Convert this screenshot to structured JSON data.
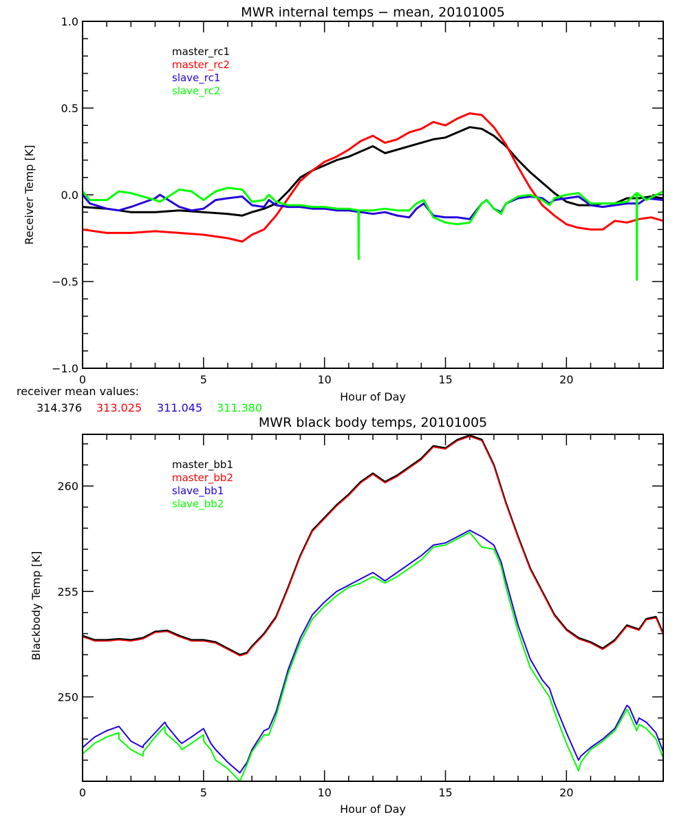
{
  "chart_data": [
    {
      "type": "line",
      "title": "MWR internal temps − mean, 20101005",
      "xlabel": "Hour of Day",
      "ylabel": "Receiver Temp [K]",
      "xlim": [
        0,
        24
      ],
      "ylim": [
        -1.0,
        1.0
      ],
      "xticks": [
        "0",
        "5",
        "10",
        "15",
        "20"
      ],
      "xtick_values": [
        0,
        5,
        10,
        15,
        20
      ],
      "yticks": [
        "−1.0",
        "−0.5",
        "0.0",
        "0.5",
        "1.0"
      ],
      "ytick_values": [
        -1.0,
        -0.5,
        0.0,
        0.5,
        1.0
      ],
      "x_minor_step": 1,
      "y_minor_step": 0.1,
      "grid": false,
      "legend_placement": "top-left",
      "series": [
        {
          "name": "master_rc1",
          "color": "#000000",
          "x": [
            0,
            1,
            2,
            3,
            4,
            5,
            6,
            6.6,
            7,
            7.5,
            8,
            8.5,
            9,
            9.5,
            10,
            10.5,
            11,
            11.5,
            12,
            12.5,
            13,
            13.5,
            14,
            14.5,
            15,
            15.5,
            16,
            16.5,
            17,
            17.5,
            18,
            18.5,
            19,
            19.5,
            20,
            20.5,
            21,
            21.5,
            22,
            22.5,
            23,
            23.5,
            24
          ],
          "y": [
            -0.07,
            -0.08,
            -0.1,
            -0.1,
            -0.09,
            -0.1,
            -0.11,
            -0.12,
            -0.1,
            -0.08,
            -0.05,
            0.02,
            0.1,
            0.14,
            0.17,
            0.2,
            0.22,
            0.25,
            0.28,
            0.24,
            0.26,
            0.28,
            0.3,
            0.32,
            0.33,
            0.36,
            0.39,
            0.38,
            0.34,
            0.28,
            0.2,
            0.13,
            0.07,
            0.01,
            -0.04,
            -0.06,
            -0.06,
            -0.05,
            -0.05,
            -0.02,
            -0.02,
            -0.01,
            -0.02
          ]
        },
        {
          "name": "master_rc2",
          "color": "#ff0000",
          "x": [
            0,
            1,
            2,
            3,
            4,
            5,
            6,
            6.6,
            7,
            7.5,
            8,
            8.5,
            9,
            9.5,
            10,
            10.5,
            11,
            11.5,
            12,
            12.5,
            13,
            13.5,
            14,
            14.5,
            15,
            15.5,
            16,
            16.5,
            17,
            17.5,
            18,
            18.5,
            19,
            19.5,
            20,
            20.5,
            21,
            21.5,
            22,
            22.5,
            23,
            23.5,
            24
          ],
          "y": [
            -0.2,
            -0.22,
            -0.22,
            -0.21,
            -0.22,
            -0.23,
            -0.25,
            -0.27,
            -0.23,
            -0.2,
            -0.12,
            -0.02,
            0.08,
            0.14,
            0.19,
            0.22,
            0.26,
            0.31,
            0.34,
            0.3,
            0.32,
            0.36,
            0.38,
            0.42,
            0.4,
            0.44,
            0.47,
            0.46,
            0.39,
            0.29,
            0.16,
            0.04,
            -0.06,
            -0.12,
            -0.17,
            -0.19,
            -0.2,
            -0.2,
            -0.15,
            -0.16,
            -0.14,
            -0.13,
            -0.15
          ]
        },
        {
          "name": "slave_rc1",
          "color": "#2200dd",
          "x": [
            0,
            0.3,
            1,
            1.5,
            2,
            3,
            3.2,
            4,
            4.5,
            5,
            5.5,
            6,
            6.6,
            7,
            7.5,
            7.7,
            8,
            8.5,
            9,
            9.5,
            10,
            10.5,
            11,
            11.5,
            12,
            12.5,
            13,
            13.5,
            13.8,
            14.1,
            14.5,
            15,
            15.5,
            16,
            16.5,
            16.7,
            17,
            17.3,
            17.5,
            18,
            18.5,
            19,
            19.3,
            19.5,
            20,
            20.5,
            21,
            21.5,
            22,
            22.5,
            23,
            23.3,
            24
          ],
          "y": [
            0.0,
            -0.05,
            -0.08,
            -0.09,
            -0.07,
            -0.02,
            0.0,
            -0.07,
            -0.09,
            -0.08,
            -0.03,
            -0.02,
            -0.01,
            -0.06,
            -0.07,
            -0.03,
            -0.06,
            -0.07,
            -0.07,
            -0.08,
            -0.08,
            -0.09,
            -0.09,
            -0.1,
            -0.11,
            -0.1,
            -0.12,
            -0.13,
            -0.08,
            -0.05,
            -0.12,
            -0.13,
            -0.13,
            -0.14,
            -0.05,
            -0.03,
            -0.08,
            -0.1,
            -0.05,
            -0.02,
            -0.01,
            -0.02,
            -0.05,
            -0.03,
            -0.02,
            -0.01,
            -0.06,
            -0.07,
            -0.06,
            -0.05,
            -0.05,
            -0.02,
            -0.03
          ]
        },
        {
          "name": "slave_rc2",
          "color": "#00ff00",
          "x": [
            0,
            0.3,
            1,
            1.5,
            2,
            3,
            3.2,
            4,
            4.5,
            5,
            5.5,
            6,
            6.6,
            7,
            7.5,
            7.7,
            8,
            8.5,
            9,
            9.5,
            10,
            10.5,
            11,
            11.4,
            11.41,
            11.42,
            12,
            12.5,
            13,
            13.5,
            13.8,
            14.1,
            14.5,
            15,
            15.5,
            16,
            16.5,
            16.7,
            17,
            17.3,
            17.5,
            18,
            18.5,
            19,
            19.3,
            19.5,
            20,
            20.5,
            21,
            21.5,
            22,
            22.5,
            22.9,
            22.91,
            22.92,
            23.3,
            24
          ],
          "y": [
            0.02,
            -0.03,
            -0.03,
            0.02,
            0.01,
            -0.03,
            -0.04,
            0.03,
            0.02,
            -0.03,
            0.02,
            0.04,
            0.03,
            -0.04,
            -0.03,
            0.0,
            -0.04,
            -0.06,
            -0.06,
            -0.07,
            -0.07,
            -0.08,
            -0.08,
            -0.09,
            -0.37,
            -0.09,
            -0.09,
            -0.08,
            -0.09,
            -0.09,
            -0.05,
            -0.03,
            -0.13,
            -0.16,
            -0.17,
            -0.16,
            -0.05,
            -0.03,
            -0.08,
            -0.11,
            -0.05,
            -0.01,
            -0.0,
            -0.03,
            -0.06,
            -0.02,
            0.0,
            0.01,
            -0.05,
            -0.05,
            -0.05,
            -0.04,
            0.01,
            -0.49,
            0.01,
            -0.03,
            0.02
          ]
        }
      ],
      "annotation": {
        "label": "receiver mean values:",
        "values": [
          {
            "text": "314.376",
            "color": "#000000"
          },
          {
            "text": "313.025",
            "color": "#ff0000"
          },
          {
            "text": "311.045",
            "color": "#2200dd"
          },
          {
            "text": "311.380",
            "color": "#00ff00"
          }
        ]
      }
    },
    {
      "type": "line",
      "title": "MWR black body temps, 20101005",
      "xlabel": "Hour of Day",
      "ylabel": "Blackbody Temp [K]",
      "xlim": [
        0,
        24
      ],
      "ylim": [
        246.0,
        262.45
      ],
      "xticks": [
        "0",
        "5",
        "10",
        "15",
        "20"
      ],
      "xtick_values": [
        0,
        5,
        10,
        15,
        20
      ],
      "yticks": [
        "250",
        "255",
        "260"
      ],
      "ytick_values": [
        250,
        255,
        260
      ],
      "x_minor_step": 1,
      "y_minor_step": 1,
      "grid": false,
      "legend_placement": "top-left",
      "series": [
        {
          "name": "master_bb1",
          "color": "#000000",
          "x": [
            0,
            0.5,
            1,
            1.5,
            2,
            2.5,
            3,
            3.5,
            4,
            4.5,
            5,
            5.5,
            6,
            6.5,
            6.8,
            7,
            7.5,
            8,
            8.5,
            9,
            9.5,
            10,
            10.5,
            11,
            11.5,
            12,
            12.5,
            13,
            13.5,
            14,
            14.5,
            15,
            15.5,
            16,
            16.5,
            17,
            17.5,
            18,
            18.5,
            19,
            19.5,
            20,
            20.5,
            21,
            21.5,
            22,
            22.5,
            23,
            23.3,
            23.7,
            24
          ],
          "y": [
            252.9,
            252.7,
            252.7,
            252.75,
            252.7,
            252.8,
            253.1,
            253.15,
            252.9,
            252.7,
            252.7,
            252.6,
            252.3,
            252.0,
            252.1,
            252.4,
            253.0,
            253.8,
            255.2,
            256.7,
            257.9,
            258.5,
            259.1,
            259.6,
            260.2,
            260.6,
            260.2,
            260.5,
            260.9,
            261.3,
            261.9,
            261.8,
            262.2,
            262.4,
            262.2,
            261.0,
            259.2,
            257.6,
            256.1,
            255.0,
            253.9,
            253.2,
            252.8,
            252.6,
            252.3,
            252.7,
            253.4,
            253.2,
            253.7,
            253.8,
            253.0
          ]
        },
        {
          "name": "master_bb2",
          "color": "#ff0000",
          "x": [
            0,
            0.5,
            1,
            1.5,
            2,
            2.5,
            3,
            3.5,
            4,
            4.5,
            5,
            5.5,
            6,
            6.5,
            6.8,
            7,
            7.5,
            8,
            8.5,
            9,
            9.5,
            10,
            10.5,
            11,
            11.5,
            12,
            12.5,
            13,
            13.5,
            14,
            14.5,
            15,
            15.5,
            16,
            16.5,
            17,
            17.5,
            18,
            18.5,
            19,
            19.5,
            20,
            20.5,
            21,
            21.5,
            22,
            22.5,
            23,
            23.3,
            23.7,
            24
          ],
          "y": [
            252.85,
            252.65,
            252.65,
            252.7,
            252.65,
            252.75,
            253.05,
            253.1,
            252.85,
            252.65,
            252.65,
            252.55,
            252.25,
            251.95,
            252.05,
            252.35,
            252.95,
            253.75,
            255.15,
            256.65,
            257.85,
            258.45,
            259.05,
            259.55,
            260.15,
            260.55,
            260.15,
            260.45,
            260.85,
            261.25,
            261.85,
            261.75,
            262.15,
            262.35,
            262.15,
            260.95,
            259.15,
            257.55,
            256.05,
            254.95,
            253.85,
            253.15,
            252.75,
            252.55,
            252.25,
            252.65,
            253.35,
            253.15,
            253.65,
            253.75,
            252.95
          ]
        },
        {
          "name": "slave_bb1",
          "color": "#2200dd",
          "x": [
            0,
            0.5,
            1,
            1.5,
            2,
            2.5,
            2.51,
            3,
            3.4,
            3.5,
            4,
            4.1,
            4.5,
            5,
            5.3,
            5.5,
            6,
            6.5,
            6.8,
            7,
            7.5,
            7.7,
            8,
            8.5,
            9,
            9.5,
            10,
            10.5,
            11,
            11.5,
            12,
            12.5,
            13,
            13.5,
            14,
            14.5,
            15,
            15.5,
            16,
            16.5,
            17,
            17.3,
            17.5,
            18,
            18.5,
            19,
            19.3,
            19.5,
            20,
            20.5,
            20.6,
            21,
            21.5,
            22,
            22.5,
            22.6,
            22.9,
            23.0,
            23.3,
            23.7,
            24
          ],
          "y": [
            247.6,
            248.1,
            248.4,
            248.6,
            247.9,
            247.6,
            247.7,
            248.3,
            248.8,
            248.6,
            247.9,
            247.8,
            248.1,
            248.5,
            247.8,
            247.5,
            246.9,
            246.4,
            246.9,
            247.5,
            248.4,
            248.5,
            249.3,
            251.3,
            252.8,
            253.9,
            254.5,
            255.0,
            255.3,
            255.6,
            255.9,
            255.5,
            255.9,
            256.3,
            256.7,
            257.2,
            257.3,
            257.6,
            257.9,
            257.6,
            257.2,
            256.4,
            255.5,
            253.4,
            251.8,
            250.8,
            250.4,
            249.7,
            248.3,
            247.0,
            247.2,
            247.6,
            248.0,
            248.5,
            249.6,
            249.5,
            248.7,
            249.0,
            248.8,
            248.3,
            247.4
          ]
        },
        {
          "name": "slave_bb2",
          "color": "#00ff00",
          "x": [
            0,
            0.5,
            1,
            1.5,
            1.51,
            2,
            2.5,
            2.51,
            3,
            3.4,
            3.41,
            4,
            4.1,
            4.5,
            5,
            5.01,
            5.3,
            5.5,
            6,
            6.5,
            6.8,
            7,
            7.5,
            7.7,
            8,
            8.5,
            9,
            9.5,
            10,
            10.5,
            11,
            11.5,
            12,
            12.5,
            13,
            13.5,
            14,
            14.5,
            15,
            15.5,
            16,
            16.5,
            17,
            17.3,
            17.5,
            18,
            18.5,
            19,
            19.3,
            19.5,
            20,
            20.5,
            20.6,
            21,
            21.5,
            22,
            22.5,
            22.6,
            22.9,
            23.0,
            23.3,
            23.7,
            24
          ],
          "y": [
            247.3,
            247.8,
            248.1,
            248.3,
            248.0,
            247.5,
            247.2,
            247.4,
            248.1,
            248.6,
            248.3,
            247.7,
            247.5,
            247.8,
            248.2,
            247.9,
            247.5,
            247.0,
            246.6,
            246.0,
            246.8,
            247.4,
            248.2,
            248.2,
            249.1,
            251.1,
            252.6,
            253.7,
            254.3,
            254.8,
            255.2,
            255.4,
            255.7,
            255.4,
            255.7,
            256.1,
            256.5,
            257.1,
            257.2,
            257.5,
            257.8,
            257.1,
            257.0,
            256.2,
            255.2,
            253.1,
            251.4,
            250.5,
            250.0,
            249.3,
            247.8,
            246.5,
            246.9,
            247.5,
            247.9,
            248.4,
            249.4,
            249.2,
            248.4,
            248.7,
            248.5,
            248.0,
            247.1
          ]
        }
      ]
    }
  ]
}
